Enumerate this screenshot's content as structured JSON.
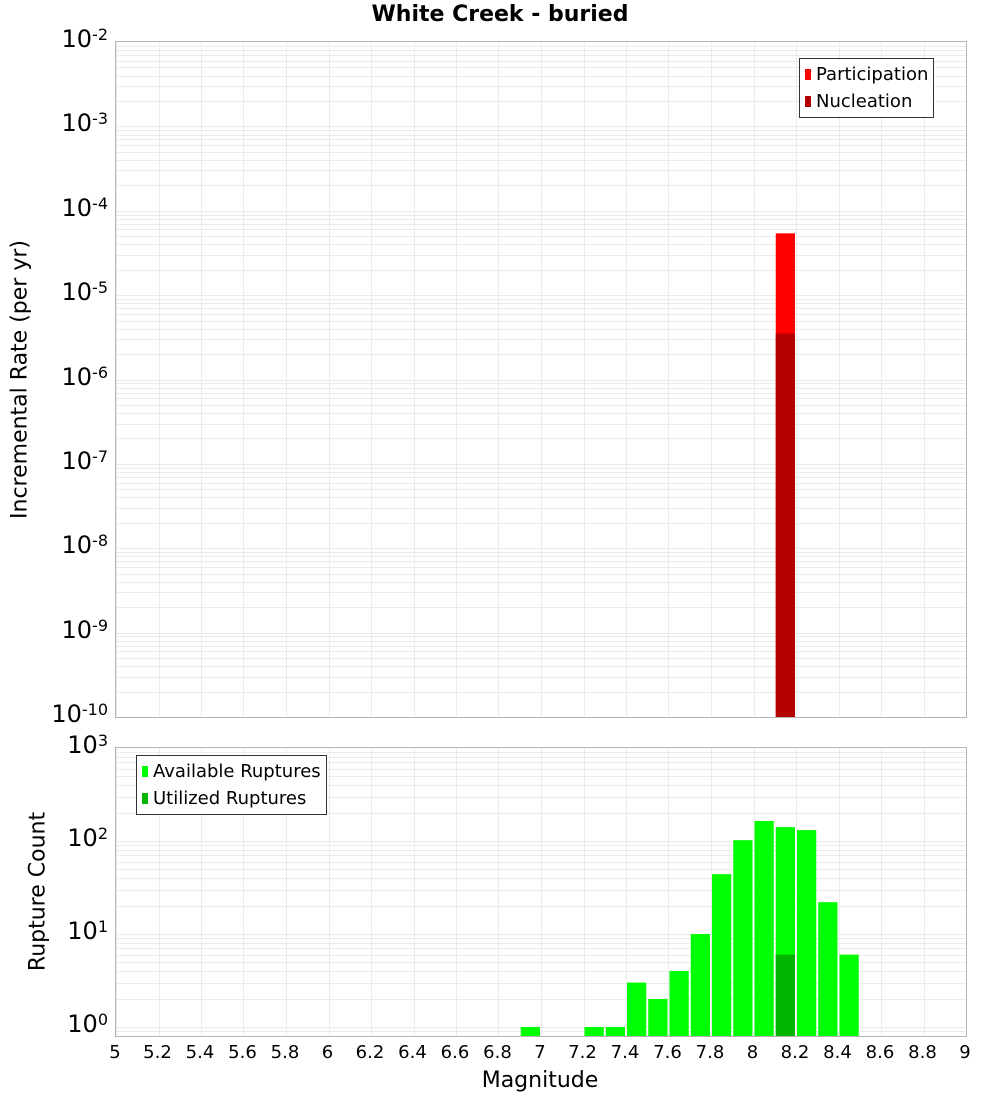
{
  "title": "White Creek - buried",
  "colors": {
    "participation": "#ff0000",
    "nucleation": "#b40000",
    "available": "#00ff00",
    "utilized": "#00b400",
    "grid": "#ebebeb",
    "axis": "#b4b4b4"
  },
  "top": {
    "ylabel": "Incremental Rate (per yr)",
    "yticks": [
      {
        "base": "10",
        "exp": "-2"
      },
      {
        "base": "10",
        "exp": "-3"
      },
      {
        "base": "10",
        "exp": "-4"
      },
      {
        "base": "10",
        "exp": "-5"
      },
      {
        "base": "10",
        "exp": "-6"
      },
      {
        "base": "10",
        "exp": "-7"
      },
      {
        "base": "10",
        "exp": "-8"
      },
      {
        "base": "10",
        "exp": "-9"
      },
      {
        "base": "10",
        "exp": "-10"
      }
    ],
    "legend": [
      {
        "label": "Participation"
      },
      {
        "label": "Nucleation"
      }
    ]
  },
  "bottom": {
    "ylabel": "Rupture Count",
    "yticks": [
      {
        "base": "10",
        "exp": "3"
      },
      {
        "base": "10",
        "exp": "2"
      },
      {
        "base": "10",
        "exp": "1"
      },
      {
        "base": "10",
        "exp": "0"
      }
    ],
    "legend": [
      {
        "label": "Available Ruptures"
      },
      {
        "label": "Utilized Ruptures"
      }
    ]
  },
  "xlabel": "Magnitude",
  "xticks": [
    "5",
    "5.2",
    "5.4",
    "5.6",
    "5.8",
    "6",
    "6.2",
    "6.4",
    "6.6",
    "6.8",
    "7",
    "7.2",
    "7.4",
    "7.6",
    "7.8",
    "8",
    "8.2",
    "8.4",
    "8.6",
    "8.8",
    "9"
  ],
  "chart_data": [
    {
      "type": "bar",
      "title": "White Creek - buried",
      "xlabel": "Magnitude",
      "ylabel": "Incremental Rate (per yr)",
      "yscale": "log",
      "xlim": [
        5,
        9
      ],
      "ylim": [
        1e-10,
        0.01
      ],
      "grid": true,
      "legend_position": "upper right",
      "bin_width": 0.1,
      "x": [
        8.15
      ],
      "series": [
        {
          "name": "Participation",
          "color": "#ff0000",
          "values": [
            5.4e-05
          ]
        },
        {
          "name": "Nucleation",
          "color": "#b40000",
          "values": [
            3.5e-06
          ]
        }
      ]
    },
    {
      "type": "bar",
      "xlabel": "Magnitude",
      "ylabel": "Rupture Count",
      "yscale": "log",
      "xlim": [
        5,
        9
      ],
      "ylim": [
        0.8,
        1000
      ],
      "grid": true,
      "legend_position": "upper left",
      "bin_width": 0.1,
      "x": [
        6.95,
        7.25,
        7.35,
        7.45,
        7.55,
        7.65,
        7.75,
        7.85,
        7.95,
        8.05,
        8.15,
        8.25,
        8.35,
        8.45
      ],
      "series": [
        {
          "name": "Available Ruptures",
          "color": "#00ff00",
          "values": [
            1,
            1,
            1,
            3,
            2,
            4,
            10,
            44,
            102,
            164,
            141,
            131,
            22,
            6
          ]
        },
        {
          "name": "Utilized Ruptures",
          "color": "#00b400",
          "values": [
            0,
            0,
            0,
            0,
            0,
            0,
            0,
            0,
            0,
            0,
            6,
            0,
            0,
            0
          ]
        }
      ]
    }
  ]
}
